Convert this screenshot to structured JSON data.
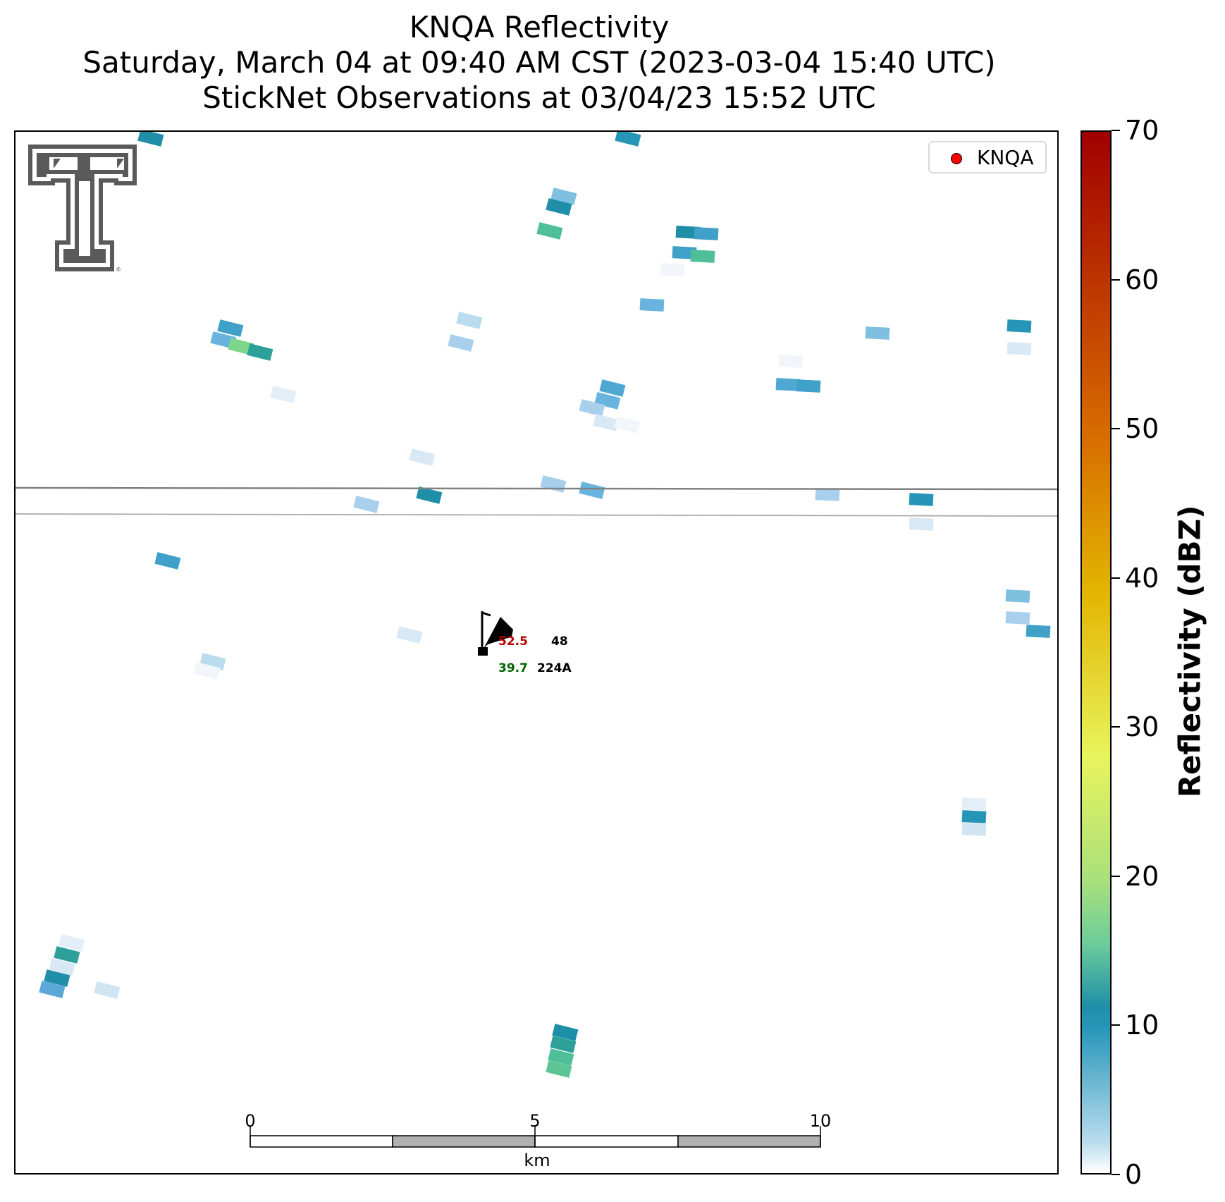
{
  "title": {
    "line1": "KNQA Reflectivity",
    "line2": "Saturday, March 04 at 09:40 AM CST (2023-03-04 15:40 UTC)",
    "line3": "StickNet Observations at 03/04/23 15:52 UTC"
  },
  "legend": {
    "label": "KNQA",
    "marker_color": "#ff0000"
  },
  "colorbar": {
    "label": "Reflectivity (dBZ)",
    "min": 0,
    "max": 70,
    "ticks": [
      "0",
      "10",
      "20",
      "30",
      "40",
      "50",
      "60",
      "70"
    ],
    "colors": [
      "#ffffff",
      "#b9dcee",
      "#2596b8",
      "#1f8fa8",
      "#7ed68a",
      "#e8f45c",
      "#e2b400",
      "#d87000",
      "#b52200",
      "#a00000"
    ]
  },
  "station": {
    "id": "224A",
    "temperature": "52.5",
    "dewpoint": "39.7",
    "pressure": "48",
    "temperature_color": "#b80000",
    "dewpoint_color": "#006400"
  },
  "scalebar": {
    "ticks": [
      "0",
      "5",
      "10"
    ],
    "unit": "km"
  },
  "logo": {
    "name": "Texas Tech double-T logo",
    "mark": "®"
  }
}
